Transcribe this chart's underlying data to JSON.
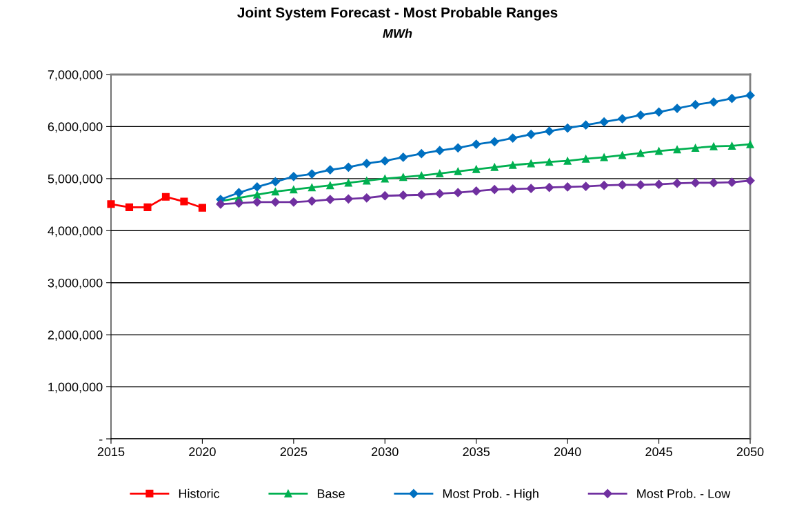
{
  "chart_data": {
    "type": "line",
    "title": "Joint System Forecast - Most Probable Ranges",
    "subtitle": "MWh",
    "xlim": [
      2015,
      2050
    ],
    "xticks": [
      2015,
      2020,
      2025,
      2030,
      2035,
      2040,
      2045,
      2050
    ],
    "ylim": [
      0,
      7000000
    ],
    "yticks": [
      {
        "value": 0,
        "label": "-"
      },
      {
        "value": 1000000,
        "label": "1,000,000"
      },
      {
        "value": 2000000,
        "label": "2,000,000"
      },
      {
        "value": 3000000,
        "label": "3,000,000"
      },
      {
        "value": 4000000,
        "label": "4,000,000"
      },
      {
        "value": 5000000,
        "label": "5,000,000"
      },
      {
        "value": 6000000,
        "label": "6,000,000"
      },
      {
        "value": 7000000,
        "label": "7,000,000"
      }
    ],
    "grid": "y",
    "legend": "bottom",
    "series": [
      {
        "name": "Historic",
        "color": "#ff0000",
        "marker": "square",
        "x": [
          2015,
          2016,
          2017,
          2018,
          2019,
          2020
        ],
        "values": [
          4510000,
          4450000,
          4450000,
          4650000,
          4560000,
          4440000
        ]
      },
      {
        "name": "Base",
        "color": "#00b050",
        "marker": "triangle",
        "x": [
          2021,
          2022,
          2023,
          2024,
          2025,
          2026,
          2027,
          2028,
          2029,
          2030,
          2031,
          2032,
          2033,
          2034,
          2035,
          2036,
          2037,
          2038,
          2039,
          2040,
          2041,
          2042,
          2043,
          2044,
          2045,
          2046,
          2047,
          2048,
          2049,
          2050
        ],
        "values": [
          4570000,
          4630000,
          4690000,
          4750000,
          4790000,
          4830000,
          4870000,
          4920000,
          4960000,
          5000000,
          5030000,
          5060000,
          5100000,
          5140000,
          5180000,
          5220000,
          5260000,
          5290000,
          5320000,
          5340000,
          5380000,
          5410000,
          5450000,
          5490000,
          5530000,
          5560000,
          5590000,
          5620000,
          5630000,
          5660000
        ]
      },
      {
        "name": "Most Prob. - High",
        "color": "#0070c0",
        "marker": "diamond",
        "x": [
          2021,
          2022,
          2023,
          2024,
          2025,
          2026,
          2027,
          2028,
          2029,
          2030,
          2031,
          2032,
          2033,
          2034,
          2035,
          2036,
          2037,
          2038,
          2039,
          2040,
          2041,
          2042,
          2043,
          2044,
          2045,
          2046,
          2047,
          2048,
          2049,
          2050
        ],
        "values": [
          4600000,
          4730000,
          4840000,
          4940000,
          5040000,
          5090000,
          5170000,
          5220000,
          5290000,
          5340000,
          5410000,
          5480000,
          5540000,
          5590000,
          5660000,
          5710000,
          5780000,
          5850000,
          5910000,
          5970000,
          6030000,
          6090000,
          6150000,
          6220000,
          6280000,
          6350000,
          6420000,
          6470000,
          6540000,
          6600000
        ]
      },
      {
        "name": "Most Prob. - Low",
        "color": "#7030a0",
        "marker": "diamond",
        "x": [
          2021,
          2022,
          2023,
          2024,
          2025,
          2026,
          2027,
          2028,
          2029,
          2030,
          2031,
          2032,
          2033,
          2034,
          2035,
          2036,
          2037,
          2038,
          2039,
          2040,
          2041,
          2042,
          2043,
          2044,
          2045,
          2046,
          2047,
          2048,
          2049,
          2050
        ],
        "values": [
          4510000,
          4530000,
          4550000,
          4550000,
          4550000,
          4570000,
          4600000,
          4610000,
          4630000,
          4670000,
          4680000,
          4690000,
          4710000,
          4730000,
          4760000,
          4790000,
          4800000,
          4810000,
          4830000,
          4840000,
          4850000,
          4870000,
          4880000,
          4880000,
          4890000,
          4910000,
          4920000,
          4920000,
          4930000,
          4960000
        ]
      }
    ]
  }
}
